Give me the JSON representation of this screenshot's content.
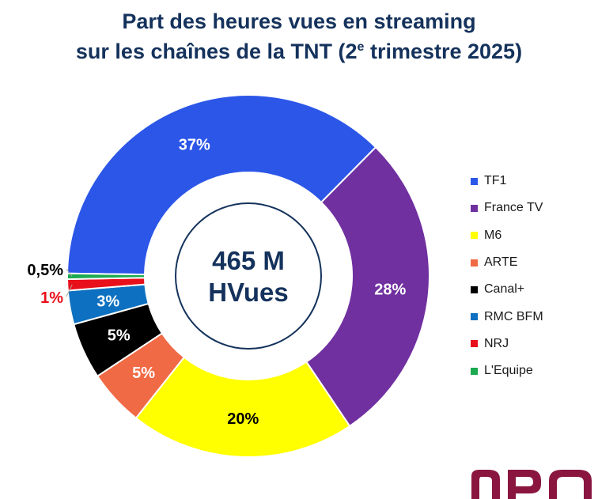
{
  "title": {
    "line1": "Part des heures vues en streaming",
    "line2_pre": "sur les chaînes de la TNT (2",
    "line2_sup": "e",
    "line2_post": " trimestre 2025)"
  },
  "center": {
    "line1": "465 M",
    "line2": "HVues"
  },
  "colors": {
    "TF1": "#2b56e8",
    "France TV": "#7030a0",
    "M6": "#ffff00",
    "ARTE": "#f06a45",
    "Canal+": "#000000",
    "RMC BFM": "#0d70c0",
    "NRJ": "#e8101a",
    "L'Equipe": "#1aa94f",
    "title": "#14325c",
    "logo": "#8a1640"
  },
  "chart_data": {
    "type": "pie",
    "subtype": "donut",
    "title": "Part des heures vues en streaming sur les chaînes de la TNT (2e trimestre 2025)",
    "center_label": "465 M HVues",
    "legend_position": "right",
    "categories": [
      "TF1",
      "France TV",
      "M6",
      "ARTE",
      "Canal+",
      "RMC BFM",
      "NRJ",
      "L'Equipe"
    ],
    "values": [
      37,
      28,
      20,
      5,
      5,
      3,
      1,
      0.5
    ],
    "labels": [
      "37%",
      "28%",
      "20%",
      "5%",
      "5%",
      "3%",
      "1%",
      "0,5%"
    ],
    "unit": "%"
  },
  "logo": {
    "icon": "npa-logo"
  }
}
